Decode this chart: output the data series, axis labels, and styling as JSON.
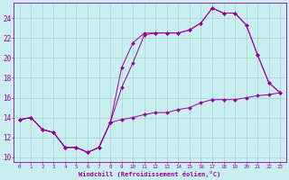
{
  "xlabel": "Windchill (Refroidissement éolien,°C)",
  "bg_color": "#c8eef0",
  "line_color": "#990099",
  "grid_color": "#aacccc",
  "xlim": [
    -0.5,
    23.5
  ],
  "ylim": [
    9.5,
    25.5
  ],
  "yticks": [
    10,
    12,
    14,
    16,
    18,
    20,
    22,
    24
  ],
  "xticks": [
    0,
    1,
    2,
    3,
    4,
    5,
    6,
    7,
    8,
    9,
    10,
    11,
    12,
    13,
    14,
    15,
    16,
    17,
    18,
    19,
    20,
    21,
    22,
    23
  ],
  "line1_x": [
    0,
    1,
    2,
    3,
    4,
    5,
    6,
    7,
    8,
    9,
    10,
    11,
    12,
    13,
    14,
    15,
    16,
    17,
    18,
    19,
    20,
    21,
    22,
    23
  ],
  "line1_y": [
    13.8,
    14.0,
    12.8,
    12.5,
    11.0,
    11.0,
    10.5,
    11.0,
    13.5,
    13.8,
    14.0,
    14.3,
    14.5,
    14.5,
    14.8,
    15.0,
    15.5,
    15.8,
    15.8,
    15.8,
    16.0,
    16.2,
    16.3,
    16.5
  ],
  "line2_x": [
    0,
    1,
    2,
    3,
    4,
    5,
    6,
    7,
    8,
    9,
    10,
    11,
    12,
    13,
    14,
    15,
    16,
    17,
    18,
    19,
    20,
    21,
    22,
    23
  ],
  "line2_y": [
    13.8,
    14.0,
    12.8,
    12.5,
    11.0,
    11.0,
    10.5,
    11.0,
    13.5,
    19.0,
    21.5,
    22.5,
    22.5,
    22.5,
    22.5,
    22.8,
    23.5,
    25.0,
    24.5,
    24.5,
    23.3,
    20.3,
    17.5,
    16.5
  ],
  "line3_x": [
    0,
    1,
    2,
    3,
    4,
    5,
    6,
    7,
    8,
    9,
    10,
    11,
    12,
    13,
    14,
    15,
    16,
    17,
    18,
    19,
    20,
    21,
    22,
    23
  ],
  "line3_y": [
    13.8,
    14.0,
    12.8,
    12.5,
    11.0,
    11.0,
    10.5,
    11.0,
    13.5,
    17.0,
    19.5,
    22.3,
    22.5,
    22.5,
    22.5,
    22.8,
    23.5,
    25.0,
    24.5,
    24.5,
    23.3,
    20.3,
    17.5,
    16.5
  ]
}
